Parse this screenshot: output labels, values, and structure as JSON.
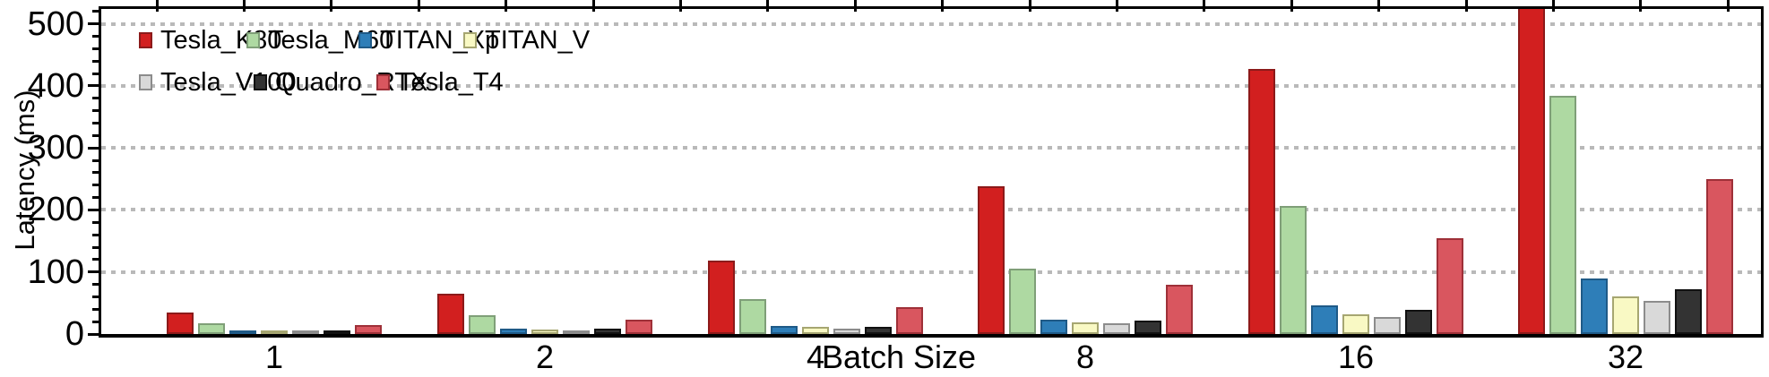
{
  "figure": {
    "ylabel": "Latency (ms)",
    "xlabel": "Batch Size",
    "background_color": "#ffffff",
    "axis_color": "#000000",
    "grid_color": "#b9b9b9"
  },
  "legend": {
    "rows": [
      [
        "Tesla_K80",
        "Tesla_M60",
        "TITAN_Xp",
        "TITAN_V"
      ],
      [
        "Tesla_V100",
        "Quadro_RTX",
        "Tesla_T4"
      ]
    ],
    "frame": "none"
  },
  "chart_data": {
    "type": "bar",
    "title": "",
    "xlabel": "Batch Size",
    "ylabel": "Latency (ms)",
    "categories": [
      "1",
      "2",
      "4",
      "8",
      "16",
      "32"
    ],
    "series": [
      {
        "name": "Tesla_K80",
        "color": "#d21f1f",
        "edge_color": "#8c1a1a",
        "values": [
          34,
          65,
          118,
          238,
          428,
          540
        ]
      },
      {
        "name": "Tesla_M60",
        "color": "#aed9a2",
        "edge_color": "#7f9f78",
        "values": [
          18,
          30,
          56,
          106,
          206,
          384
        ]
      },
      {
        "name": "TITAN_Xp",
        "color": "#2e7eb8",
        "edge_color": "#1f5a87",
        "values": [
          6,
          9,
          13,
          23,
          46,
          90
        ]
      },
      {
        "name": "TITAN_V",
        "color": "#f9f9c4",
        "edge_color": "#a6a671",
        "values": [
          5,
          7,
          11,
          19,
          32,
          61
        ]
      },
      {
        "name": "Tesla_V100",
        "color": "#d9d9d9",
        "edge_color": "#8c8c8c",
        "values": [
          4,
          6,
          9,
          17,
          28,
          53
        ]
      },
      {
        "name": "Quadro_RTX",
        "color": "#333333",
        "edge_color": "#111111",
        "values": [
          5,
          8,
          12,
          22,
          39,
          72
        ]
      },
      {
        "name": "Tesla_T4",
        "color": "#d9565f",
        "edge_color": "#9e3038",
        "values": [
          14,
          23,
          43,
          80,
          154,
          250
        ]
      }
    ],
    "ylim": [
      0,
      524
    ],
    "yticks": [
      0,
      100,
      200,
      300,
      400,
      500
    ],
    "y_minor_tick_interval": 20,
    "grid": "horizontal dotted lines at major y ticks",
    "legend_position": "upper left inside plot, two rows, no frame",
    "notes": "Tesla_K80 bar at batch size 32 is clipped by the top of the axis"
  }
}
